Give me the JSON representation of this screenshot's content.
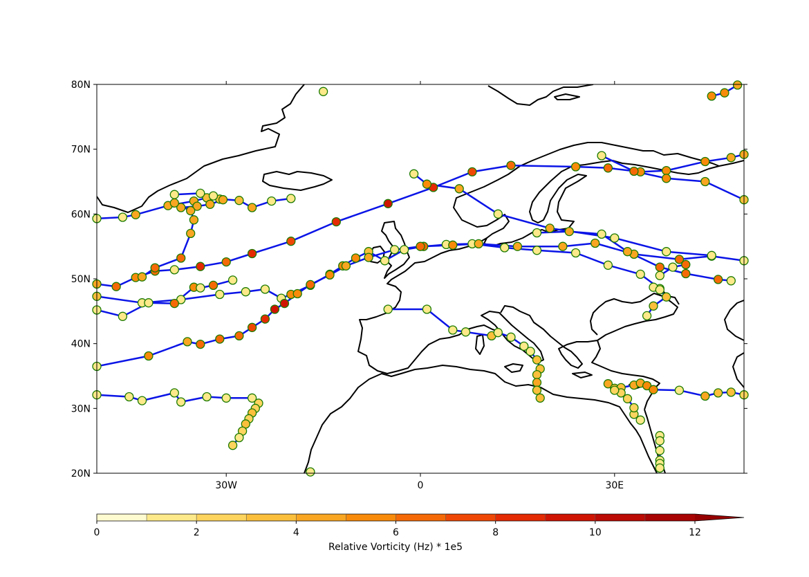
{
  "map": {
    "lon_range": [
      -50,
      50
    ],
    "lat_range": [
      20,
      80
    ],
    "lat_ticks": [
      {
        "value": 80,
        "label": "80N"
      },
      {
        "value": 70,
        "label": "70N"
      },
      {
        "value": 60,
        "label": "60N"
      },
      {
        "value": 50,
        "label": "50N"
      },
      {
        "value": 40,
        "label": "40N"
      },
      {
        "value": 30,
        "label": "30N"
      },
      {
        "value": 20,
        "label": "20N"
      }
    ],
    "lon_ticks": [
      {
        "value": -30,
        "label": "30W"
      },
      {
        "value": 0,
        "label": "0"
      },
      {
        "value": 30,
        "label": "30E"
      }
    ],
    "track_color": "#0a14e6",
    "marker_edge_color": "#1a7a00",
    "coastline_color": "#000000"
  },
  "colorbar": {
    "label": "Relative Vorticity (Hz) * 1e5",
    "min": 0,
    "max": 13,
    "tick_labels": [
      {
        "value": 0,
        "label": "0"
      },
      {
        "value": 2,
        "label": "2"
      },
      {
        "value": 4,
        "label": "4"
      },
      {
        "value": 6,
        "label": "6"
      },
      {
        "value": 8,
        "label": "8"
      },
      {
        "value": 10,
        "label": "10"
      },
      {
        "value": 12,
        "label": "12"
      }
    ],
    "colors": [
      "#fffbd0",
      "#fde98a",
      "#fdd45e",
      "#fbbf3c",
      "#f9a622",
      "#f88b0a",
      "#f56a06",
      "#ef4806",
      "#e42a04",
      "#d01404",
      "#bc0a04",
      "#a80404",
      "#960000"
    ],
    "extend": "max"
  },
  "tracks": [
    {
      "points": [
        [
          -50,
          49.2,
          4
        ],
        [
          -47,
          48.8,
          6
        ],
        [
          -44,
          50.2,
          5
        ],
        [
          -41,
          51.2,
          6
        ],
        [
          -38,
          51.4,
          1
        ],
        [
          -34,
          51.9,
          8
        ],
        [
          -30,
          52.6,
          6
        ],
        [
          -26,
          53.9,
          8
        ],
        [
          -20,
          55.8,
          7
        ],
        [
          -13,
          58.8,
          8
        ],
        [
          -5,
          61.6,
          9
        ],
        [
          2,
          64.1,
          8
        ],
        [
          8,
          66.5,
          7
        ],
        [
          14,
          67.5,
          6
        ],
        [
          24,
          67.3,
          5
        ],
        [
          29,
          67.1,
          6
        ],
        [
          34,
          66.5,
          5
        ],
        [
          38,
          66.7,
          5
        ],
        [
          44,
          68.1,
          5
        ],
        [
          48,
          68.7,
          4
        ],
        [
          50,
          69.2,
          4
        ]
      ]
    },
    {
      "points": [
        [
          -50,
          47.3,
          3
        ],
        [
          -43,
          46.3,
          1
        ],
        [
          -37,
          46.8,
          1
        ],
        [
          -31,
          47.6,
          1
        ],
        [
          -27,
          48.0,
          1
        ],
        [
          -24,
          48.4,
          1
        ],
        [
          -21.5,
          47.0,
          1
        ],
        [
          -20,
          47.6,
          5
        ],
        [
          -17,
          49.0,
          6
        ],
        [
          -14,
          50.7,
          5
        ],
        [
          -12,
          52.0,
          5
        ],
        [
          -10,
          53.2,
          5
        ],
        [
          -8,
          54.2,
          3
        ],
        [
          -5.5,
          52.8,
          1
        ],
        [
          -2.5,
          54.5,
          1
        ],
        [
          0.5,
          55.0,
          6
        ],
        [
          4,
          55.3,
          1
        ],
        [
          8,
          55.4,
          1
        ],
        [
          13,
          54.8,
          1
        ],
        [
          18,
          54.4,
          1
        ],
        [
          24,
          54.0,
          1
        ],
        [
          29,
          52.1,
          1
        ],
        [
          34,
          50.7,
          1
        ],
        [
          37,
          48.5,
          1
        ]
      ]
    },
    {
      "points": [
        [
          -50,
          36.5,
          1
        ],
        [
          -42,
          38.1,
          5
        ],
        [
          -36,
          40.3,
          4
        ],
        [
          -34,
          39.9,
          6
        ],
        [
          -31,
          40.7,
          6
        ],
        [
          -28,
          41.2,
          6
        ],
        [
          -26,
          42.5,
          7
        ],
        [
          -24,
          43.8,
          8
        ],
        [
          -22.5,
          45.3,
          9
        ],
        [
          -21,
          46.2,
          9
        ],
        [
          -19,
          47.7,
          5
        ],
        [
          -17,
          49.1,
          6
        ],
        [
          -14,
          50.6,
          5
        ],
        [
          -11.5,
          52.0,
          4
        ],
        [
          -8,
          53.3,
          4
        ],
        [
          -4,
          54.5,
          1
        ],
        [
          0,
          55.0,
          6
        ],
        [
          5,
          55.2,
          5
        ],
        [
          9,
          55.4,
          4
        ],
        [
          15,
          55.0,
          4
        ],
        [
          22,
          55.0,
          4
        ],
        [
          27,
          55.5,
          4
        ],
        [
          33,
          53.8,
          4
        ],
        [
          40,
          53.0,
          6
        ],
        [
          45,
          53.5,
          1
        ],
        [
          50,
          52.8,
          1
        ]
      ]
    },
    {
      "points": [
        [
          -50,
          59.3,
          1
        ],
        [
          -46,
          59.5,
          1
        ],
        [
          -44,
          59.9,
          4
        ],
        [
          -39,
          61.3,
          4
        ],
        [
          -35,
          62.0,
          4
        ],
        [
          -33,
          62.5,
          3
        ],
        [
          -31,
          62.3,
          3
        ],
        [
          -28,
          62.1,
          3
        ],
        [
          -26,
          61.0,
          4
        ],
        [
          -23,
          62.0,
          1
        ],
        [
          -20,
          62.4,
          1
        ]
      ]
    },
    {
      "points": [
        [
          -38,
          63.0,
          1
        ],
        [
          -34,
          63.2,
          1
        ],
        [
          -32,
          62.8,
          1
        ],
        [
          -30.5,
          62.2,
          4
        ],
        [
          -32.5,
          61.5,
          4
        ],
        [
          -34.5,
          61.2,
          4
        ],
        [
          -37,
          61.0,
          4
        ],
        [
          -38,
          61.7,
          4
        ],
        [
          -35.5,
          60.5,
          4
        ],
        [
          -35,
          59.1,
          4
        ],
        [
          -35.5,
          57.0,
          4
        ],
        [
          -37,
          53.2,
          6
        ],
        [
          -41,
          51.7,
          6
        ],
        [
          -43,
          50.3,
          4
        ]
      ]
    },
    {
      "points": [
        [
          -50,
          45.2,
          1
        ],
        [
          -46,
          44.2,
          1
        ],
        [
          -42,
          46.3,
          1
        ],
        [
          -38,
          46.2,
          6
        ],
        [
          -35,
          48.7,
          5
        ],
        [
          -34,
          48.6,
          1
        ],
        [
          -32,
          49.0,
          6
        ],
        [
          -29,
          49.8,
          1
        ]
      ]
    },
    {
      "points": [
        [
          -50,
          32.1,
          1
        ],
        [
          -45,
          31.8,
          1
        ],
        [
          -43,
          31.2,
          1
        ],
        [
          -38,
          32.4,
          1
        ],
        [
          -37,
          31.0,
          1
        ],
        [
          -33,
          31.8,
          1
        ],
        [
          -30,
          31.6,
          1
        ],
        [
          -26,
          31.6,
          1
        ],
        [
          -25,
          30.8,
          2
        ],
        [
          -25.5,
          30.0,
          2
        ],
        [
          -26,
          29.3,
          3
        ],
        [
          -26.5,
          28.4,
          2
        ],
        [
          -27,
          27.6,
          3
        ],
        [
          -27.5,
          26.5,
          2
        ],
        [
          -28,
          25.5,
          1
        ],
        [
          -29,
          24.3,
          2
        ]
      ]
    },
    {
      "points": [
        [
          -5,
          45.3,
          1
        ],
        [
          1,
          45.3,
          1
        ],
        [
          5,
          42.1,
          1
        ],
        [
          7,
          41.8,
          1
        ],
        [
          11,
          41.2,
          3
        ],
        [
          12,
          41.7,
          1
        ],
        [
          14,
          41.0,
          1
        ],
        [
          16,
          39.6,
          1
        ],
        [
          17,
          38.8,
          1
        ],
        [
          18,
          37.5,
          3
        ],
        [
          18.5,
          36.1,
          3
        ],
        [
          18,
          35.2,
          3
        ],
        [
          18,
          34.0,
          4
        ],
        [
          18,
          32.8,
          3
        ],
        [
          18.5,
          31.6,
          3
        ]
      ]
    },
    {
      "points": [
        [
          29,
          33.8,
          4
        ],
        [
          30,
          33.1,
          3
        ],
        [
          31,
          33.2,
          3
        ],
        [
          33,
          33.6,
          4
        ],
        [
          34,
          33.9,
          4
        ],
        [
          35,
          33.5,
          5
        ],
        [
          36,
          32.9,
          5
        ],
        [
          40,
          32.8,
          1
        ],
        [
          44,
          31.9,
          4
        ],
        [
          46,
          32.4,
          3
        ],
        [
          48,
          32.5,
          3
        ],
        [
          50,
          32.1,
          2
        ],
        [
          52,
          30.8,
          1
        ]
      ]
    },
    {
      "points": [
        [
          34,
          28.2,
          1
        ],
        [
          33,
          29.1,
          2
        ],
        [
          33,
          30.1,
          2
        ],
        [
          32,
          31.5,
          2
        ],
        [
          31,
          32.4,
          2
        ],
        [
          30,
          32.8,
          2
        ]
      ]
    },
    {
      "points": [
        [
          37,
          25.8,
          1
        ],
        [
          37,
          25.0,
          1
        ],
        [
          37,
          23.5,
          1
        ],
        [
          37,
          22.0,
          1
        ],
        [
          37,
          21.5,
          1
        ],
        [
          37,
          20.8,
          1
        ]
      ]
    },
    {
      "points": [
        [
          -1,
          66.2,
          1
        ],
        [
          1,
          64.6,
          5
        ],
        [
          6,
          63.9,
          4
        ],
        [
          12,
          60.0,
          1
        ],
        [
          20,
          57.8,
          4
        ],
        [
          30,
          56.3,
          1
        ],
        [
          38,
          54.2,
          1
        ],
        [
          45,
          53.6,
          1
        ]
      ]
    },
    {
      "points": [
        [
          28,
          69.0,
          1
        ],
        [
          33,
          66.6,
          6
        ],
        [
          38,
          65.5,
          5
        ],
        [
          44,
          65.0,
          4
        ],
        [
          50,
          62.2,
          3
        ],
        [
          53,
          61.5,
          3
        ]
      ]
    },
    {
      "points": [
        [
          18,
          57.1,
          1
        ],
        [
          23,
          57.3,
          4
        ],
        [
          28,
          56.9,
          1
        ],
        [
          32,
          54.2,
          4
        ],
        [
          37,
          51.8,
          6
        ],
        [
          41,
          50.8,
          6
        ],
        [
          46,
          49.9,
          6
        ],
        [
          48,
          49.7,
          1
        ]
      ]
    },
    {
      "points": [
        [
          37,
          50.5,
          1
        ],
        [
          39,
          51.8,
          1
        ],
        [
          41,
          52.2,
          6
        ]
      ]
    },
    {
      "points": [
        [
          36,
          48.7,
          1
        ],
        [
          37,
          48.3,
          1
        ],
        [
          38,
          47.2,
          3
        ],
        [
          36,
          45.8,
          3
        ],
        [
          35,
          44.3,
          1
        ]
      ]
    },
    {
      "points": [
        [
          -15,
          78.9,
          1
        ]
      ]
    },
    {
      "points": [
        [
          45,
          78.2,
          5
        ],
        [
          47,
          78.7,
          5
        ],
        [
          49,
          79.9,
          4
        ]
      ]
    },
    {
      "points": [
        [
          -17,
          20.2,
          1
        ]
      ]
    }
  ]
}
